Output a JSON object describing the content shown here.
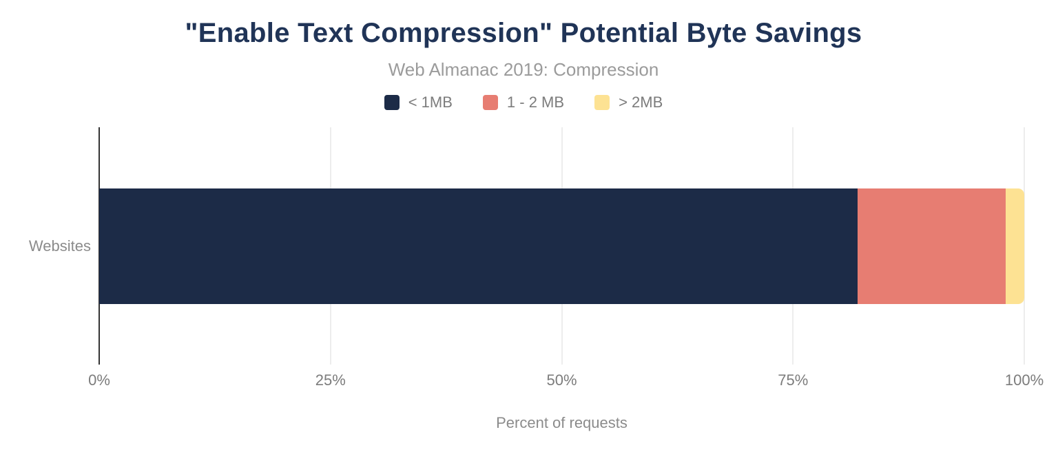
{
  "chart_data": {
    "type": "bar",
    "variant": "horizontal-stacked",
    "title": "\"Enable Text Compression\" Potential Byte Savings",
    "subtitle": "Web Almanac 2019: Compression",
    "categories": [
      "Websites"
    ],
    "series": [
      {
        "name": "< 1MB",
        "color": "#1c2b47",
        "values": [
          82
        ]
      },
      {
        "name": "1 - 2 MB",
        "color": "#e77d72",
        "values": [
          16
        ]
      },
      {
        "name": "> 2MB",
        "color": "#fde293",
        "values": [
          2
        ]
      }
    ],
    "xlabel": "Percent of requests",
    "x_tick_labels": [
      "0%",
      "25%",
      "50%",
      "75%",
      "100%"
    ],
    "xlim": [
      0,
      100
    ],
    "grid": "vertical",
    "legend_position": "top"
  },
  "colors": {
    "title_text": "#203457",
    "subtitle_text": "#9b9b9b",
    "axis_text": "#7c7c7c",
    "axis_line": "#333333",
    "gridline": "#ededed",
    "background": "#ffffff"
  }
}
